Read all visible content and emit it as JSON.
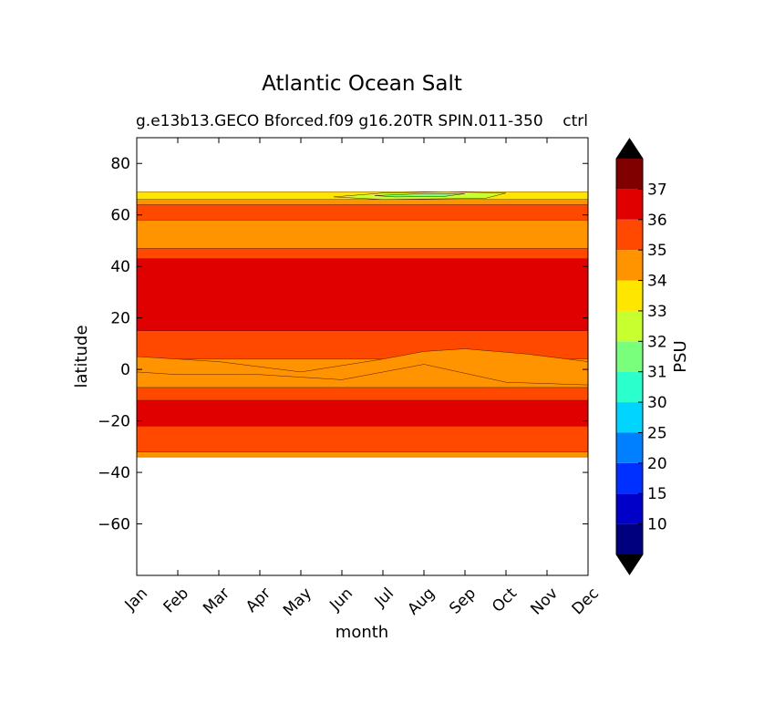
{
  "chart_data": {
    "type": "contourf",
    "title": "Atlantic Ocean Salt",
    "subtitle_left": "g.e13b13.GECO Bforced.f09 g16.20TR SPIN.011-350",
    "subtitle_right": "ctrl",
    "xlabel": "month",
    "ylabel": "latitude",
    "x_categories": [
      "Jan",
      "Feb",
      "Mar",
      "Apr",
      "May",
      "Jun",
      "Jul",
      "Aug",
      "Sep",
      "Oct",
      "Nov",
      "Dec"
    ],
    "ylim": [
      -80,
      90
    ],
    "y_ticks": [
      80,
      60,
      40,
      20,
      0,
      -20,
      -40,
      -60
    ],
    "y_tick_labels": [
      "80",
      "60",
      "40",
      "20",
      "0",
      "−20",
      "−40",
      "−60"
    ],
    "data_lat_range": [
      -34,
      69
    ],
    "colorbar": {
      "label": "PSU",
      "levels": [
        10,
        15,
        20,
        25,
        30,
        31,
        32,
        33,
        34,
        35,
        36,
        37
      ],
      "colors": [
        "#00007f",
        "#0000c8",
        "#0030ff",
        "#0080ff",
        "#00d4ff",
        "#2bffcc",
        "#7aff7c",
        "#c8ff2e",
        "#ffe600",
        "#ff9400",
        "#ff4800",
        "#e00000",
        "#800000"
      ],
      "extend": "both"
    },
    "bands": [
      {
        "lat_min": -34,
        "lat_max": -32,
        "value": 34.5
      },
      {
        "lat_min": -32,
        "lat_max": -22,
        "value": 35.5
      },
      {
        "lat_min": -22,
        "lat_max": -12,
        "value": 36.2
      },
      {
        "lat_min": -12,
        "lat_max": -7,
        "value": 35.5
      },
      {
        "lat_min": -7,
        "lat_max": 4,
        "value": 34.8
      },
      {
        "lat_min": 4,
        "lat_max": 15,
        "value": 35.5
      },
      {
        "lat_min": 15,
        "lat_max": 43,
        "value": 36.4
      },
      {
        "lat_min": 43,
        "lat_max": 47,
        "value": 35.5
      },
      {
        "lat_min": 47,
        "lat_max": 58,
        "value": 34.5
      },
      {
        "lat_min": 58,
        "lat_max": 64,
        "value": 35.5
      },
      {
        "lat_min": 64,
        "lat_max": 66,
        "value": 34.5
      },
      {
        "lat_min": 66,
        "lat_max": 69,
        "value": 33.5
      }
    ],
    "patches": [
      {
        "points": [
          [
            0,
            5
          ],
          [
            2,
            3
          ],
          [
            4,
            -1
          ],
          [
            6,
            4
          ],
          [
            7,
            7
          ],
          [
            8,
            8
          ],
          [
            9.5,
            6
          ],
          [
            11,
            3
          ],
          [
            11,
            -6
          ],
          [
            9,
            -5
          ],
          [
            7,
            2
          ],
          [
            5,
            -4
          ],
          [
            3,
            -2
          ],
          [
            1,
            -2
          ],
          [
            0,
            -1
          ]
        ],
        "value": 34.5
      },
      {
        "points": [
          [
            4.8,
            67
          ],
          [
            6,
            68.5
          ],
          [
            7.5,
            69
          ],
          [
            9,
            68.5
          ],
          [
            8.5,
            66.5
          ],
          [
            6,
            66
          ]
        ],
        "value": 32.5
      },
      {
        "points": [
          [
            5.8,
            67.5
          ],
          [
            7,
            68.3
          ],
          [
            8,
            68.3
          ],
          [
            7.5,
            67.2
          ],
          [
            6.3,
            67
          ]
        ],
        "value": 31.5
      }
    ]
  }
}
